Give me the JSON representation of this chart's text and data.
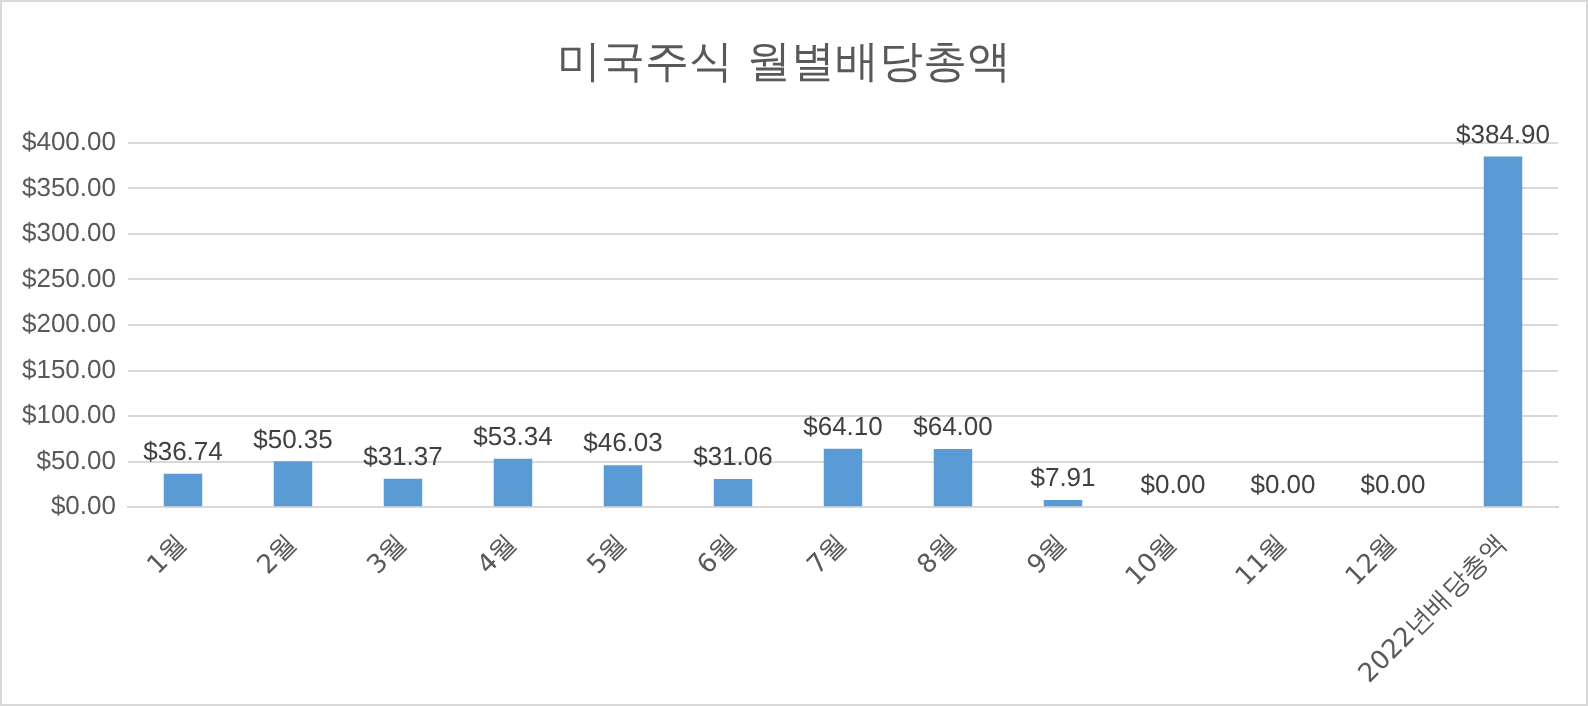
{
  "chart_data": {
    "type": "bar",
    "title": "미국주식 월별배당총액",
    "categories": [
      "1월",
      "2월",
      "3월",
      "4월",
      "5월",
      "6월",
      "7월",
      "8월",
      "9월",
      "10월",
      "11월",
      "12월",
      "2022년배당총액"
    ],
    "values": [
      36.74,
      50.35,
      31.37,
      53.34,
      46.03,
      31.06,
      64.1,
      64.0,
      7.91,
      0.0,
      0.0,
      0.0,
      384.9
    ],
    "value_labels": [
      "$36.74",
      "$50.35",
      "$31.37",
      "$53.34",
      "$46.03",
      "$31.06",
      "$64.10",
      "$64.00",
      "$7.91",
      "$0.00",
      "$0.00",
      "$0.00",
      "$384.90"
    ],
    "color": "#5b9bd5",
    "ylim": [
      0,
      400
    ],
    "yticks": [
      {
        "value": 0,
        "label": "$0.00"
      },
      {
        "value": 50,
        "label": "$50.00"
      },
      {
        "value": 100,
        "label": "$100.00"
      },
      {
        "value": 150,
        "label": "$150.00"
      },
      {
        "value": 200,
        "label": "$200.00"
      },
      {
        "value": 250,
        "label": "$250.00"
      },
      {
        "value": 300,
        "label": "$300.00"
      },
      {
        "value": 350,
        "label": "$350.00"
      },
      {
        "value": 400,
        "label": "$400.00"
      }
    ],
    "grid": "y",
    "legend": false
  }
}
